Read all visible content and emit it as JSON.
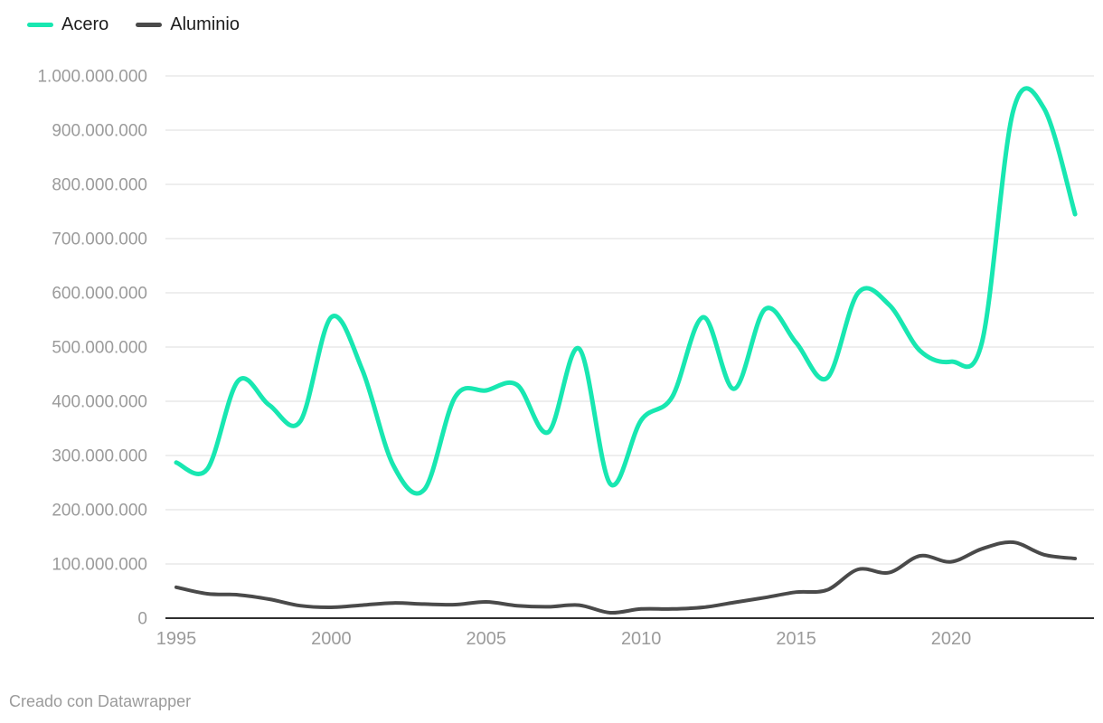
{
  "legend": {
    "items": [
      {
        "label": "Acero",
        "color": "#18e7b1"
      },
      {
        "label": "Aluminio",
        "color": "#4a4a4a"
      }
    ]
  },
  "footer": {
    "credit": "Creado con Datawrapper"
  },
  "chart_data": {
    "type": "line",
    "line_shape": "curved",
    "grid": "horizontal",
    "legend_position": "top-left",
    "title": "",
    "xlabel": "",
    "ylabel": "",
    "x": [
      1995,
      1996,
      1997,
      1998,
      1999,
      2000,
      2001,
      2002,
      2003,
      2004,
      2005,
      2006,
      2007,
      2008,
      2009,
      2010,
      2011,
      2012,
      2013,
      2014,
      2015,
      2016,
      2017,
      2018,
      2019,
      2020,
      2021,
      2022,
      2023,
      2024
    ],
    "series": [
      {
        "name": "Acero",
        "color": "#18e7b1",
        "values": [
          287000000,
          275000000,
          438000000,
          393000000,
          363000000,
          555000000,
          458000000,
          282000000,
          237000000,
          408000000,
          420000000,
          430000000,
          343000000,
          497000000,
          248000000,
          365000000,
          408000000,
          555000000,
          423000000,
          570000000,
          508000000,
          443000000,
          600000000,
          578000000,
          493000000,
          473000000,
          510000000,
          935000000,
          940000000,
          745000000
        ]
      },
      {
        "name": "Aluminio",
        "color": "#4a4a4a",
        "values": [
          57000000,
          45000000,
          43000000,
          35000000,
          23000000,
          20000000,
          24000000,
          28000000,
          26000000,
          25000000,
          30000000,
          23000000,
          21000000,
          24000000,
          10000000,
          17000000,
          17000000,
          20000000,
          29000000,
          38000000,
          48000000,
          52000000,
          90000000,
          84000000,
          115000000,
          104000000,
          128000000,
          140000000,
          117000000,
          110000000
        ]
      }
    ],
    "ylim": [
      0,
      1000000000
    ],
    "yticks": [
      1000000000,
      900000000,
      800000000,
      700000000,
      600000000,
      500000000,
      400000000,
      300000000,
      200000000,
      100000000,
      0
    ],
    "ytick_labels": [
      "1.000.000.000",
      "900.000.000",
      "800.000.000",
      "700.000.000",
      "600.000.000",
      "500.000.000",
      "400.000.000",
      "300.000.000",
      "200.000.000",
      "100.000.000",
      "0"
    ],
    "xticks": [
      1995,
      2000,
      2005,
      2010,
      2015,
      2020
    ],
    "xtick_labels": [
      "1995",
      "2000",
      "2005",
      "2010",
      "2015",
      "2020"
    ]
  },
  "colors": {
    "grid": "#e8e8e8",
    "axis": "#2f2f2f",
    "tick_text": "#9b9b9b"
  }
}
